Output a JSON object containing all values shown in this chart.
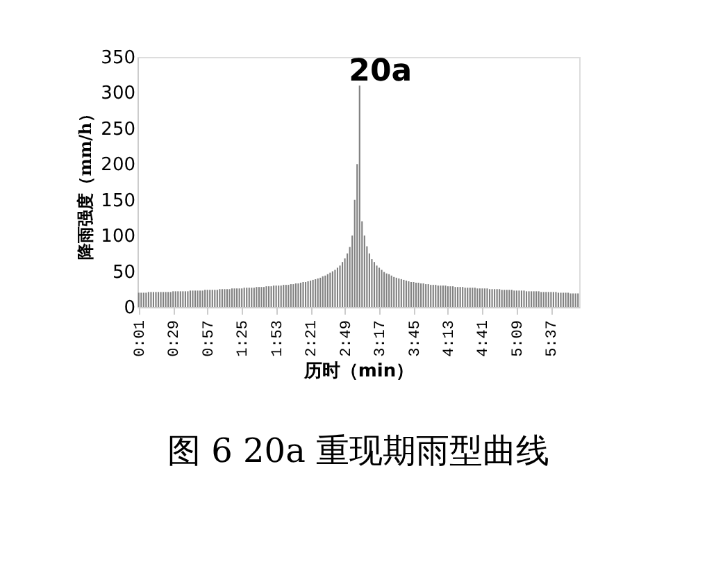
{
  "chart_data": {
    "type": "bar",
    "title": "图 6 20a 重现期雨型曲线",
    "xlabel": "历时（min）",
    "ylabel": "降雨强度（mm/h）",
    "x": [
      1,
      3,
      5,
      7,
      9,
      11,
      13,
      15,
      17,
      19,
      21,
      23,
      25,
      27,
      29,
      31,
      33,
      35,
      37,
      39,
      41,
      43,
      45,
      47,
      49,
      51,
      53,
      55,
      57,
      59,
      61,
      63,
      65,
      67,
      69,
      71,
      73,
      75,
      77,
      79,
      81,
      83,
      85,
      87,
      89,
      91,
      93,
      95,
      97,
      99,
      101,
      103,
      105,
      107,
      109,
      111,
      113,
      115,
      117,
      119,
      121,
      123,
      125,
      127,
      129,
      131,
      133,
      135,
      137,
      139,
      141,
      143,
      145,
      147,
      149,
      151,
      153,
      155,
      157,
      159,
      161,
      163,
      165,
      167,
      169,
      171,
      173,
      175,
      177,
      179,
      181,
      183,
      185,
      187,
      189,
      191,
      193,
      195,
      197,
      199,
      201,
      203,
      205,
      207,
      209,
      211,
      213,
      215,
      217,
      219,
      221,
      223,
      225,
      227,
      229,
      231,
      233,
      235,
      237,
      239,
      241,
      243,
      245,
      247,
      249,
      251,
      253,
      255,
      257,
      259,
      261,
      263,
      265,
      267,
      269,
      271,
      273,
      275,
      277,
      279,
      281,
      283,
      285,
      287,
      289,
      291,
      293,
      295,
      297,
      299,
      301,
      303,
      305,
      307,
      309,
      311,
      313,
      315,
      317,
      319,
      321,
      323,
      325,
      327,
      329,
      331,
      333,
      335,
      337,
      339,
      341,
      343,
      345,
      347,
      349,
      351,
      353,
      355,
      357,
      359
    ],
    "values": [
      20,
      20,
      20,
      20,
      21,
      21,
      21,
      21,
      21,
      21,
      21,
      21,
      21,
      21,
      22,
      22,
      22,
      22,
      22,
      22,
      22,
      23,
      23,
      23,
      23,
      23,
      23,
      24,
      24,
      24,
      24,
      24,
      24,
      25,
      25,
      25,
      25,
      25,
      26,
      26,
      26,
      26,
      26,
      27,
      27,
      27,
      27,
      27,
      28,
      28,
      28,
      28,
      29,
      29,
      29,
      30,
      30,
      30,
      30,
      31,
      31,
      31,
      32,
      32,
      33,
      33,
      34,
      35,
      35,
      36,
      37,
      38,
      39,
      40,
      41,
      43,
      44,
      46,
      48,
      50,
      52,
      55,
      58,
      63,
      68,
      75,
      84,
      100,
      150,
      200,
      310,
      120,
      100,
      85,
      75,
      67,
      63,
      58,
      55,
      52,
      49,
      47,
      46,
      44,
      42,
      41,
      40,
      39,
      38,
      37,
      36,
      35,
      35,
      34,
      34,
      33,
      33,
      32,
      32,
      31,
      31,
      31,
      30,
      30,
      30,
      30,
      29,
      29,
      29,
      28,
      28,
      28,
      28,
      27,
      27,
      27,
      27,
      27,
      26,
      26,
      26,
      26,
      26,
      25,
      25,
      25,
      25,
      25,
      24,
      24,
      24,
      24,
      24,
      23,
      23,
      23,
      23,
      23,
      22,
      22,
      22,
      22,
      22,
      22,
      21,
      21,
      21,
      21,
      21,
      21,
      21,
      20,
      20,
      20,
      20,
      20,
      19,
      19,
      19,
      19
    ],
    "color": "#808080",
    "xlim": [
      0,
      360
    ],
    "xticks": [
      {
        "value": 1,
        "label": "0:01"
      },
      {
        "value": 29,
        "label": "0:29"
      },
      {
        "value": 57,
        "label": "0:57"
      },
      {
        "value": 85,
        "label": "1:25"
      },
      {
        "value": 113,
        "label": "1:53"
      },
      {
        "value": 141,
        "label": "2:21"
      },
      {
        "value": 169,
        "label": "2:49"
      },
      {
        "value": 197,
        "label": "3:17"
      },
      {
        "value": 225,
        "label": "3:45"
      },
      {
        "value": 253,
        "label": "4:13"
      },
      {
        "value": 281,
        "label": "4:41"
      },
      {
        "value": 309,
        "label": "5:09"
      },
      {
        "value": 337,
        "label": "5:37"
      }
    ],
    "ylim": [
      0,
      350
    ],
    "yticks": [
      0,
      50,
      100,
      150,
      200,
      250,
      300,
      350
    ],
    "annotations": [
      "20a"
    ],
    "grid": false
  }
}
